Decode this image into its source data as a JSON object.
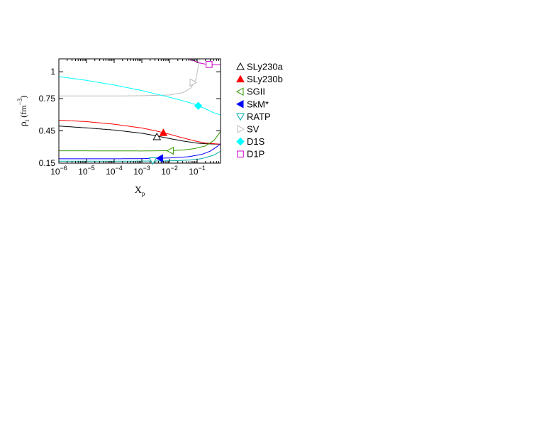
{
  "chart_data": {
    "type": "line",
    "xscale": "log",
    "xlim": [
      1e-06,
      0.7
    ],
    "ylim": [
      0.15,
      1.12
    ],
    "grid": false,
    "legend_position": "right",
    "xlabel": {
      "main": "X",
      "sub": "p"
    },
    "ylabel": {
      "main": "ρ",
      "sub": "t",
      "paren": "(fm",
      "sup": "−3",
      "close": ")"
    },
    "x_ticks": [
      {
        "value": 1e-06,
        "base": "10",
        "exp": "−6"
      },
      {
        "value": 1e-05,
        "base": "10",
        "exp": "−5"
      },
      {
        "value": 0.0001,
        "base": "10",
        "exp": "−4"
      },
      {
        "value": 0.001,
        "base": "10",
        "exp": "−3"
      },
      {
        "value": 0.01,
        "base": "10",
        "exp": "−2"
      },
      {
        "value": 0.1,
        "base": "10",
        "exp": "−1"
      }
    ],
    "y_ticks": [
      {
        "value": 0.15,
        "label": "0.15"
      },
      {
        "value": 0.45,
        "label": "0.45"
      },
      {
        "value": 0.75,
        "label": "0.75"
      },
      {
        "value": 1.0,
        "label": "1"
      }
    ],
    "series": [
      {
        "name": "SLy230a",
        "color": "#000000",
        "marker": "triangle-up",
        "filled": false,
        "points": [
          [
            1e-06,
            0.495
          ],
          [
            1e-05,
            0.478
          ],
          [
            0.0001,
            0.458
          ],
          [
            0.001,
            0.428
          ],
          [
            0.003,
            0.406
          ],
          [
            0.01,
            0.379
          ],
          [
            0.03,
            0.356
          ],
          [
            0.1,
            0.336
          ],
          [
            0.2,
            0.33
          ],
          [
            0.7,
            0.326
          ]
        ],
        "marker_at": [
          0.0035,
          0.394
        ]
      },
      {
        "name": "SLy230b",
        "color": "#ff0000",
        "marker": "triangle-up",
        "filled": true,
        "points": [
          [
            1e-06,
            0.55
          ],
          [
            1e-05,
            0.536
          ],
          [
            0.0001,
            0.512
          ],
          [
            0.001,
            0.477
          ],
          [
            0.003,
            0.452
          ],
          [
            0.01,
            0.419
          ],
          [
            0.03,
            0.385
          ],
          [
            0.1,
            0.352
          ],
          [
            0.2,
            0.337
          ],
          [
            0.7,
            0.326
          ]
        ],
        "marker_at": [
          0.006,
          0.432
        ]
      },
      {
        "name": "SGII",
        "color": "#339900",
        "marker": "triangle-left",
        "filled": false,
        "points": [
          [
            1e-06,
            0.265
          ],
          [
            0.0001,
            0.264
          ],
          [
            0.001,
            0.263
          ],
          [
            0.01,
            0.266
          ],
          [
            0.03,
            0.272
          ],
          [
            0.08,
            0.285
          ],
          [
            0.2,
            0.31
          ],
          [
            0.4,
            0.36
          ],
          [
            0.6,
            0.42
          ],
          [
            0.7,
            0.445
          ]
        ],
        "marker_at": [
          0.011,
          0.265
        ]
      },
      {
        "name": "SkM*",
        "color": "#0000ff",
        "marker": "triangle-left",
        "filled": true,
        "points": [
          [
            1e-06,
            0.19
          ],
          [
            0.0001,
            0.19
          ],
          [
            0.001,
            0.192
          ],
          [
            0.01,
            0.198
          ],
          [
            0.05,
            0.21
          ],
          [
            0.15,
            0.232
          ],
          [
            0.3,
            0.262
          ],
          [
            0.5,
            0.3
          ],
          [
            0.7,
            0.33
          ]
        ],
        "marker_at": [
          0.0045,
          0.195
        ]
      },
      {
        "name": "RATP",
        "color": "#00aaaa",
        "marker": "triangle-down",
        "filled": false,
        "points": [
          [
            1e-06,
            0.168
          ],
          [
            0.0001,
            0.168
          ],
          [
            0.001,
            0.169
          ],
          [
            0.01,
            0.171
          ],
          [
            0.05,
            0.178
          ],
          [
            0.15,
            0.192
          ],
          [
            0.4,
            0.225
          ],
          [
            0.7,
            0.26
          ]
        ],
        "marker_at": [
          0.0025,
          0.173
        ]
      },
      {
        "name": "SV",
        "color": "#bbbbbb",
        "marker": "triangle-right",
        "filled": false,
        "points": [
          [
            1e-06,
            0.775
          ],
          [
            0.0001,
            0.775
          ],
          [
            0.001,
            0.777
          ],
          [
            0.01,
            0.784
          ],
          [
            0.03,
            0.805
          ],
          [
            0.06,
            0.85
          ],
          [
            0.09,
            0.93
          ],
          [
            0.11,
            1.05
          ],
          [
            0.12,
            1.12
          ]
        ],
        "marker_at": [
          0.07,
          0.9
        ]
      },
      {
        "name": "D1S",
        "color": "#00ffff",
        "marker": "diamond",
        "filled": true,
        "points": [
          [
            1e-06,
            0.955
          ],
          [
            1e-05,
            0.92
          ],
          [
            0.0001,
            0.877
          ],
          [
            0.001,
            0.825
          ],
          [
            0.01,
            0.763
          ],
          [
            0.05,
            0.715
          ],
          [
            0.1,
            0.69
          ],
          [
            0.2,
            0.655
          ],
          [
            0.4,
            0.618
          ],
          [
            0.7,
            0.6
          ]
        ],
        "marker_at": [
          0.11,
          0.683
        ]
      },
      {
        "name": "D1P",
        "color": "#cc00cc",
        "marker": "square",
        "filled": false,
        "points": [
          [
            0.05,
            1.12
          ],
          [
            0.08,
            1.1
          ],
          [
            0.12,
            1.082
          ],
          [
            0.2,
            1.071
          ],
          [
            0.4,
            1.066
          ],
          [
            0.7,
            1.065
          ]
        ],
        "marker_at": [
          0.27,
          1.068
        ]
      }
    ]
  }
}
